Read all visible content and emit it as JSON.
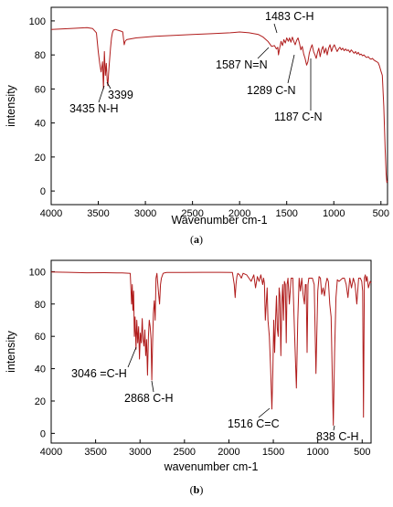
{
  "chart_data": [
    {
      "type": "line",
      "caption": "(a)",
      "caption_letter": "a",
      "xlabel": "Wavenumber cm-1",
      "ylabel": "intensity",
      "xlim": [
        4000,
        430
      ],
      "ylim": [
        -8,
        108
      ],
      "x_ticks": [
        4000,
        3500,
        3000,
        2500,
        2000,
        1500,
        1000,
        500
      ],
      "y_ticks": [
        0,
        20,
        40,
        60,
        80,
        100
      ],
      "grid": false,
      "line_color": "#b01c1c",
      "series": [
        {
          "x": [
            4000,
            3800,
            3620,
            3560,
            3520,
            3500,
            3485,
            3470,
            3455,
            3445,
            3435,
            3425,
            3415,
            3405,
            3399,
            3390,
            3380,
            3370,
            3360,
            3350,
            3340,
            3320,
            3290,
            3260,
            3240,
            3225,
            3215,
            3200,
            3100,
            2900,
            2700,
            2500,
            2300,
            2100,
            2000,
            1900,
            1800,
            1750,
            1700,
            1660,
            1630,
            1610,
            1595,
            1587,
            1575,
            1560,
            1545,
            1530,
            1515,
            1500,
            1483,
            1470,
            1455,
            1440,
            1425,
            1410,
            1395,
            1380,
            1365,
            1350,
            1335,
            1320,
            1305,
            1289,
            1275,
            1260,
            1245,
            1230,
            1215,
            1200,
            1187,
            1175,
            1160,
            1145,
            1130,
            1115,
            1100,
            1085,
            1070,
            1055,
            1040,
            1025,
            1010,
            995,
            980,
            965,
            950,
            935,
            920,
            905,
            890,
            875,
            860,
            845,
            830,
            815,
            800,
            785,
            770,
            755,
            740,
            725,
            710,
            695,
            680,
            665,
            650,
            635,
            620,
            605,
            590,
            575,
            560,
            545,
            530,
            515,
            500,
            485,
            470,
            455,
            445,
            437,
            432
          ],
          "y": [
            95,
            95.5,
            96,
            95.5,
            93,
            82,
            75,
            70,
            76,
            60,
            82,
            68,
            75,
            65,
            62,
            70,
            77,
            84,
            90,
            93,
            94.5,
            95,
            94.5,
            94,
            93.5,
            86,
            88,
            89,
            90,
            91,
            91.5,
            92,
            92.5,
            93,
            93.5,
            93,
            92,
            90.5,
            88,
            85,
            85.5,
            83.5,
            84.5,
            80,
            84,
            88,
            85.5,
            89,
            87,
            90,
            88,
            90,
            87.5,
            90.5,
            88,
            86,
            88.5,
            90,
            87,
            83,
            85,
            80.5,
            78,
            74,
            76,
            81,
            84,
            86,
            82,
            80,
            78,
            81,
            84,
            79,
            83,
            85,
            81,
            84,
            80,
            84,
            86,
            82,
            84.5,
            86,
            84,
            82,
            83.5,
            84.5,
            83,
            84,
            82.5,
            83.5,
            82.5,
            83,
            81.5,
            83,
            82,
            81,
            82,
            80.5,
            81.5,
            80,
            80.5,
            79.5,
            80,
            79,
            78.5,
            79,
            78,
            77.5,
            78,
            77,
            76.5,
            76,
            75.5,
            73.5,
            70.5,
            68,
            50,
            25,
            10,
            5,
            6
          ]
        }
      ],
      "annotations": [
        {
          "text": "1483 C-H",
          "x": 1483,
          "y": 88
        },
        {
          "text": "1587 N=N",
          "x": 1587,
          "y": 80
        },
        {
          "text": "1289 C-N",
          "x": 1289,
          "y": 74
        },
        {
          "text": "1187 C-N",
          "x": 1187,
          "y": 78
        },
        {
          "text": "3399",
          "x": 3399,
          "y": 62
        },
        {
          "text": "3435 N-H",
          "x": 3435,
          "y": 60
        }
      ]
    },
    {
      "type": "line",
      "caption": "(b)",
      "caption_letter": "b",
      "xlabel": "wavenumber cm-1",
      "ylabel": "intensity",
      "xlim": [
        4000,
        400
      ],
      "ylim": [
        -6,
        107
      ],
      "x_ticks": [
        4000,
        3500,
        3000,
        2500,
        2000,
        1500,
        1000,
        500
      ],
      "y_ticks": [
        0,
        20,
        40,
        60,
        80,
        100
      ],
      "grid": false,
      "line_color": "#b01c1c",
      "series": [
        {
          "x": [
            4000,
            3800,
            3600,
            3400,
            3200,
            3110,
            3095,
            3088,
            3080,
            3072,
            3064,
            3056,
            3046,
            3036,
            3026,
            3016,
            3006,
            2996,
            2986,
            2976,
            2966,
            2956,
            2946,
            2936,
            2926,
            2916,
            2906,
            2896,
            2886,
            2876,
            2868,
            2860,
            2850,
            2840,
            2830,
            2820,
            2810,
            2800,
            2790,
            2780,
            2770,
            2760,
            2740,
            2720,
            2700,
            2500,
            2300,
            2100,
            1960,
            1940,
            1930,
            1920,
            1910,
            1900,
            1880,
            1860,
            1840,
            1800,
            1750,
            1720,
            1700,
            1680,
            1660,
            1640,
            1620,
            1610,
            1600,
            1590,
            1580,
            1570,
            1560,
            1545,
            1530,
            1516,
            1505,
            1495,
            1485,
            1475,
            1465,
            1455,
            1445,
            1435,
            1425,
            1415,
            1405,
            1395,
            1385,
            1375,
            1365,
            1355,
            1345,
            1335,
            1320,
            1300,
            1280,
            1260,
            1240,
            1225,
            1210,
            1195,
            1180,
            1165,
            1150,
            1140,
            1130,
            1120,
            1110,
            1100,
            1080,
            1060,
            1040,
            1020,
            1000,
            985,
            970,
            955,
            940,
            925,
            910,
            895,
            880,
            865,
            850,
            838,
            825,
            810,
            795,
            780,
            760,
            740,
            720,
            700,
            680,
            660,
            640,
            620,
            600,
            580,
            560,
            540,
            520,
            505,
            495,
            485,
            475,
            465,
            455,
            445,
            430,
            410,
            400
          ],
          "y": [
            99.8,
            99.6,
            99.3,
            99.4,
            99.2,
            99,
            80,
            92,
            76,
            88,
            60,
            72,
            52,
            70,
            56,
            66,
            46,
            62,
            56,
            71,
            58,
            54,
            64,
            48,
            58,
            36,
            60,
            70,
            66,
            58,
            33,
            52,
            74,
            82,
            70,
            96,
            99,
            92,
            86,
            80,
            92,
            96,
            99,
            99.3,
            99.5,
            99.5,
            99.6,
            99.6,
            99.5,
            92,
            84,
            92,
            97,
            99,
            98,
            96,
            99,
            98,
            94,
            98,
            90,
            97,
            94,
            98,
            92,
            96,
            93,
            70,
            80,
            90,
            70,
            60,
            40,
            15,
            40,
            70,
            50,
            70,
            85,
            65,
            60,
            90,
            85,
            48,
            80,
            92,
            70,
            94,
            92,
            56,
            92,
            96,
            80,
            96,
            96,
            60,
            28,
            70,
            96,
            88,
            96,
            86,
            80,
            92,
            92,
            50,
            92,
            96,
            96,
            96,
            92,
            37,
            88,
            97,
            96,
            86,
            90,
            85,
            92,
            96,
            94,
            80,
            72,
            40,
            5,
            50,
            84,
            95,
            94,
            95,
            96,
            96,
            92,
            84,
            96,
            90,
            96,
            92,
            80,
            96,
            96,
            94,
            88,
            10,
            96,
            98,
            94,
            97,
            90,
            94,
            93
          ]
        }
      ],
      "annotations": [
        {
          "text": "3046 =C-H",
          "x": 3046,
          "y": 52
        },
        {
          "text": "2868 C-H",
          "x": 2868,
          "y": 33
        },
        {
          "text": "1516 C=C",
          "x": 1516,
          "y": 15
        },
        {
          "text": "838 C-H",
          "x": 838,
          "y": 5
        }
      ]
    }
  ]
}
